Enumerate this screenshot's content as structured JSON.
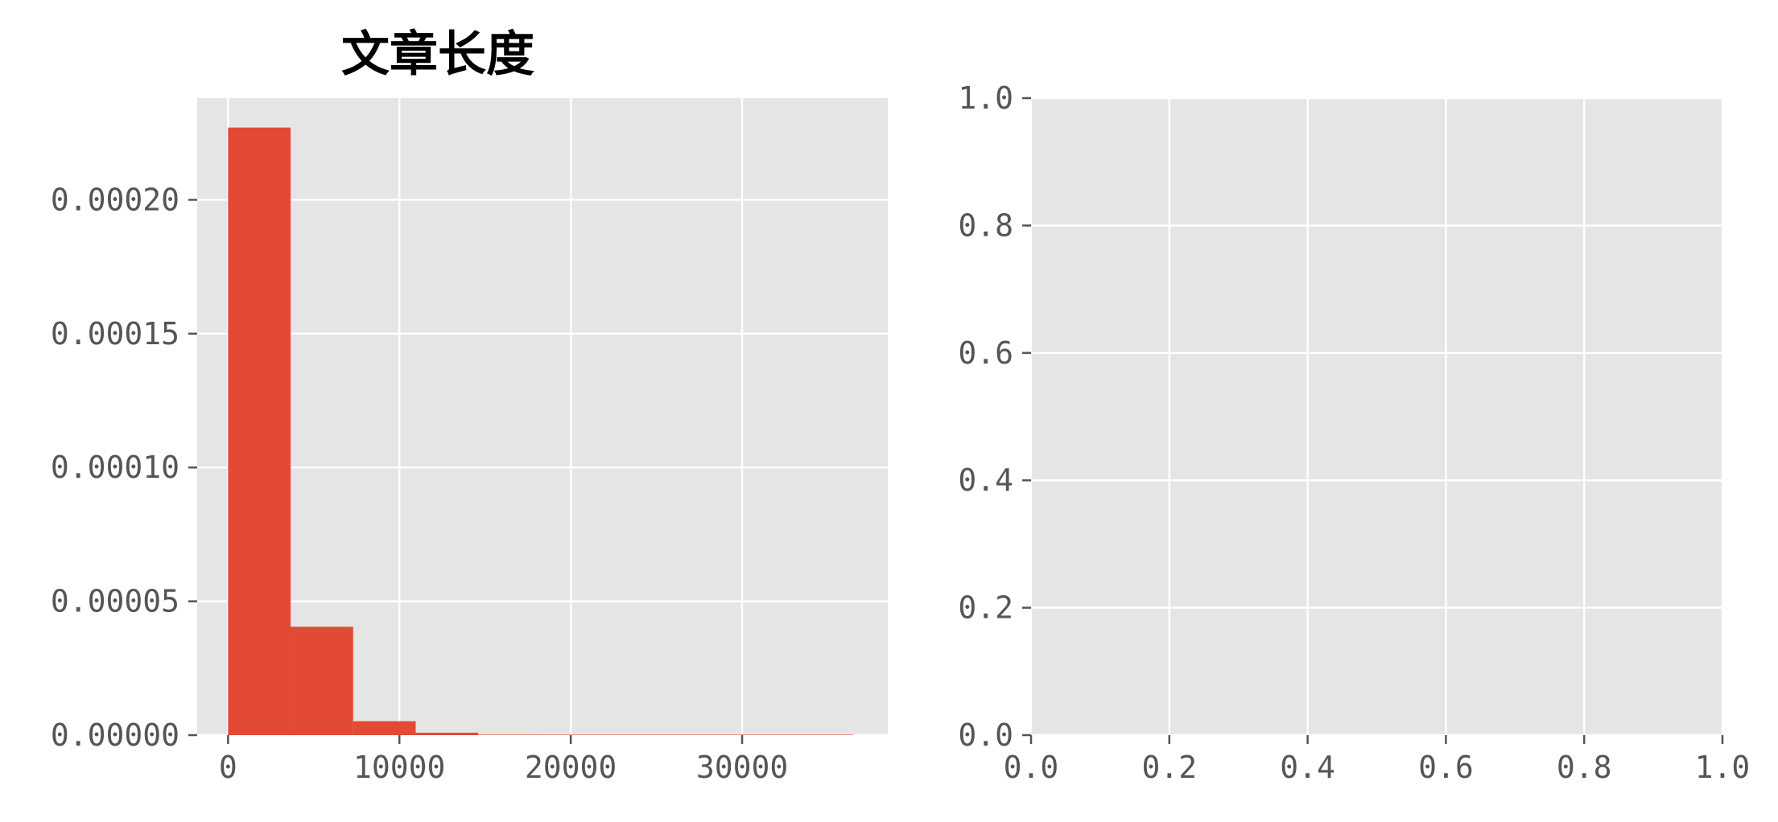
{
  "chart_data": [
    {
      "type": "bar",
      "title": "文章长度",
      "xlabel": "",
      "ylabel": "",
      "xlim": [
        -1800,
        38500
      ],
      "ylim": [
        0,
        0.000238
      ],
      "grid": true,
      "background": "#E5E5E5",
      "bar_color": "#E24A33",
      "xticks": [
        0,
        10000,
        20000,
        30000
      ],
      "xtick_labels": [
        "0",
        "10000",
        "20000",
        "30000"
      ],
      "yticks": [
        0,
        5e-05,
        0.0001,
        0.00015,
        0.0002
      ],
      "ytick_labels": [
        "0.00000",
        "0.00005",
        "0.00010",
        "0.00015",
        "0.00020"
      ],
      "bins": [
        {
          "x0": 0,
          "x1": 3650,
          "value": 0.000227
        },
        {
          "x0": 3650,
          "x1": 7300,
          "value": 4.05e-05
        },
        {
          "x0": 7300,
          "x1": 10950,
          "value": 5.2e-06
        },
        {
          "x0": 10950,
          "x1": 14600,
          "value": 9e-07
        },
        {
          "x0": 14600,
          "x1": 18250,
          "value": 2e-07
        },
        {
          "x0": 18250,
          "x1": 21900,
          "value": 1e-07
        },
        {
          "x0": 21900,
          "x1": 25550,
          "value": 1e-07
        },
        {
          "x0": 25550,
          "x1": 29200,
          "value": 5e-08
        },
        {
          "x0": 29200,
          "x1": 32850,
          "value": 3e-08
        },
        {
          "x0": 32850,
          "x1": 36500,
          "value": 3e-08
        }
      ]
    },
    {
      "type": "scatter",
      "title": "",
      "xlabel": "",
      "ylabel": "",
      "xlim": [
        0,
        1
      ],
      "ylim": [
        0,
        1
      ],
      "grid": true,
      "background": "#E5E5E5",
      "xticks": [
        0,
        0.2,
        0.4,
        0.6,
        0.8,
        1.0
      ],
      "xtick_labels": [
        "0.0",
        "0.2",
        "0.4",
        "0.6",
        "0.8",
        "1.0"
      ],
      "yticks": [
        0,
        0.2,
        0.4,
        0.6,
        0.8,
        1.0
      ],
      "ytick_labels": [
        "0.0",
        "0.2",
        "0.4",
        "0.6",
        "0.8",
        "1.0"
      ],
      "points": []
    }
  ]
}
